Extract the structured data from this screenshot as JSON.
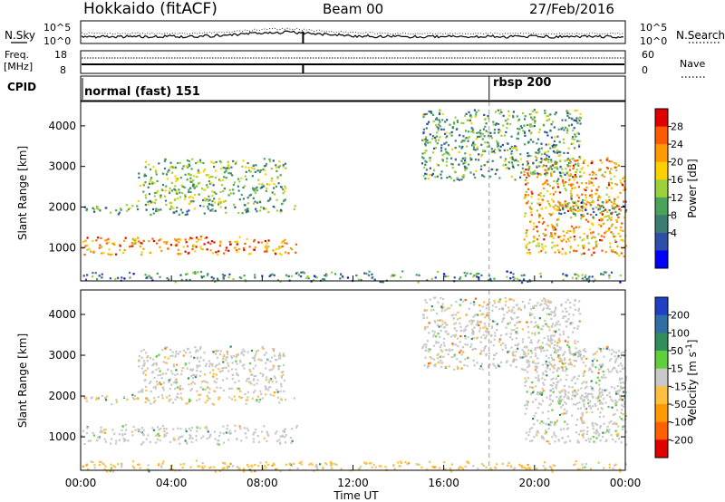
{
  "header": {
    "station": "Hokkaido (fitACF)",
    "beam": "Beam 00",
    "date": "27/Feb/2016"
  },
  "noise_panel": {
    "left_label": "N.Sky",
    "right_label": "N.Search",
    "left_ticks": [
      "10^5",
      "10^0"
    ],
    "right_ticks": [
      "10^5",
      "10^0"
    ]
  },
  "freq_panel": {
    "left_label_line1": "Freq.",
    "left_label_line2": "[MHz]",
    "right_label": "Nave",
    "left_ticks": [
      "18",
      "8"
    ],
    "right_ticks": [
      "60",
      "0"
    ]
  },
  "cpid_panel": {
    "label": "CPID",
    "modes": [
      {
        "name": "normal (fast) 151",
        "start_hour": 0
      },
      {
        "name": "rbsp 200",
        "start_hour": 18
      }
    ]
  },
  "power_panel": {
    "ylabel": "Slant Range [km]",
    "colorbar_label": "Power [dB]",
    "colorbar_ticks": [
      "28",
      "24",
      "20",
      "16",
      "12",
      "8",
      "4"
    ],
    "colorbar_colors": [
      "#e00000",
      "#ff5a00",
      "#ff9b00",
      "#ffd000",
      "#9ccf3c",
      "#4aa35a",
      "#3d7c72",
      "#2d4fa8",
      "#0000ff"
    ]
  },
  "velocity_panel": {
    "ylabel": "Slant Range [km]",
    "colorbar_label": "Velocity [m s",
    "colorbar_label_sup": "-1",
    "colorbar_label_tail": "]",
    "colorbar_ticks": [
      "200",
      "100",
      "50",
      "15",
      "-15",
      "-50",
      "-100",
      "-200"
    ],
    "colorbar_colors": [
      "#1f3fc4",
      "#2f6fa6",
      "#2f8e5c",
      "#5fcf3a",
      "#c8c8c8",
      "#ffc040",
      "#ff9a00",
      "#ff6000",
      "#e00000"
    ]
  },
  "xaxis": {
    "label": "Time UT",
    "ticks": [
      "00:00",
      "04:00",
      "08:00",
      "12:00",
      "16:00",
      "20:00",
      "00:00"
    ]
  },
  "chart_data": {
    "type": "heatmap",
    "title": "Hokkaido (fitACF) Beam 00 27/Feb/2016",
    "xlabel": "Time UT",
    "ylabel": "Slant Range [km]",
    "xlim_hours": [
      0,
      24
    ],
    "ylim_km": [
      180,
      4600
    ],
    "yticks_km": [
      1000,
      2000,
      3000,
      4000
    ],
    "power_clim_db": [
      0,
      32
    ],
    "velocity_clim_ms": [
      -250,
      250
    ],
    "echo_regions": [
      {
        "name": "band_1000",
        "t0": 0.0,
        "t1": 9.5,
        "r0": 860,
        "r1": 1280,
        "power_db": 24,
        "velocity_ms": 0
      },
      {
        "name": "band_1900",
        "t0": 0.0,
        "t1": 9.5,
        "r0": 1850,
        "r1": 2050,
        "power_db": 12,
        "velocity_ms": -20
      },
      {
        "name": "scatter_2500",
        "t0": 2.5,
        "t1": 9.0,
        "r0": 2100,
        "r1": 3200,
        "power_db": 14,
        "velocity_ms": -10
      },
      {
        "name": "near_range",
        "t0": 0.0,
        "t1": 24.0,
        "r0": 200,
        "r1": 400,
        "power_db": 10,
        "velocity_ms": -40
      },
      {
        "name": "evening_arc",
        "t0": 19.5,
        "t1": 24.0,
        "r0": 850,
        "r1": 3200,
        "power_db": 22,
        "velocity_ms": 10
      },
      {
        "name": "evening_2000",
        "t0": 21.0,
        "t1": 24.0,
        "r0": 1800,
        "r1": 2200,
        "power_db": 10,
        "velocity_ms": -5
      },
      {
        "name": "sparse_4000",
        "t0": 15.0,
        "t1": 22.0,
        "r0": 2700,
        "r1": 4400,
        "power_db": 12,
        "velocity_ms": -10
      }
    ],
    "cpid_change_hour": 18,
    "noise_peak_hour": 9.8
  }
}
